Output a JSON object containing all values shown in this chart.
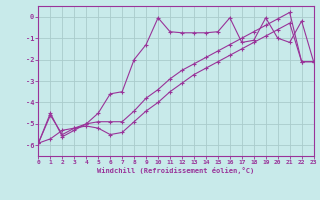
{
  "xlabel": "Windchill (Refroidissement éolien,°C)",
  "xlim": [
    0,
    23
  ],
  "ylim": [
    -6.5,
    0.5
  ],
  "xticks": [
    0,
    1,
    2,
    3,
    4,
    5,
    6,
    7,
    8,
    9,
    10,
    11,
    12,
    13,
    14,
    15,
    16,
    17,
    18,
    19,
    20,
    21,
    22,
    23
  ],
  "yticks": [
    0,
    -1,
    -2,
    -3,
    -4,
    -5,
    -6
  ],
  "bg_color": "#c8eaea",
  "grid_color": "#aacccc",
  "line_color": "#993399",
  "lines": [
    {
      "x": [
        0,
        1,
        2,
        3,
        4,
        5,
        6,
        7,
        8,
        9,
        10,
        11,
        12,
        13,
        14,
        15,
        16,
        17,
        18,
        19,
        20,
        21,
        22,
        23
      ],
      "y": [
        -5.9,
        -4.6,
        -5.5,
        -5.2,
        -5.1,
        -5.2,
        -5.5,
        -5.4,
        -4.9,
        -4.4,
        -4.0,
        -3.5,
        -3.1,
        -2.7,
        -2.4,
        -2.1,
        -1.8,
        -1.5,
        -1.2,
        -0.9,
        -0.6,
        -0.3,
        -2.1,
        -2.1
      ]
    },
    {
      "x": [
        0,
        1,
        2,
        3,
        4,
        5,
        6,
        7,
        8,
        9,
        10,
        11,
        12,
        13,
        14,
        15,
        16,
        17,
        18,
        19,
        20,
        21,
        22,
        23
      ],
      "y": [
        -5.9,
        -5.7,
        -5.3,
        -5.2,
        -5.0,
        -4.9,
        -4.9,
        -4.9,
        -4.4,
        -3.8,
        -3.4,
        -2.9,
        -2.5,
        -2.2,
        -1.9,
        -1.6,
        -1.3,
        -1.0,
        -0.7,
        -0.4,
        -0.1,
        0.2,
        -2.1,
        -2.1
      ]
    },
    {
      "x": [
        0,
        1,
        2,
        3,
        4,
        5,
        6,
        7,
        8,
        9,
        10,
        11,
        12,
        13,
        14,
        15,
        16,
        17,
        18,
        19,
        20,
        21,
        22,
        23
      ],
      "y": [
        -5.9,
        -4.5,
        -5.6,
        -5.3,
        -5.0,
        -4.5,
        -3.6,
        -3.5,
        -2.0,
        -1.3,
        -0.05,
        -0.7,
        -0.75,
        -0.75,
        -0.75,
        -0.7,
        -0.05,
        -1.2,
        -1.1,
        -0.05,
        -1.0,
        -1.2,
        -0.2,
        -2.1
      ]
    }
  ]
}
